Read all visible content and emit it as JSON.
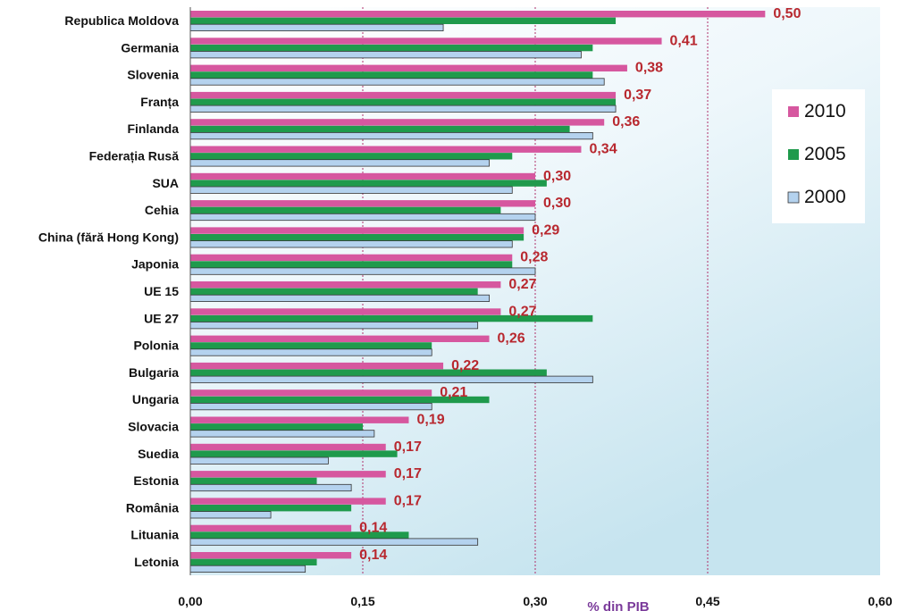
{
  "chart_data": {
    "type": "bar",
    "orientation": "horizontal",
    "categories": [
      "Republica Moldova",
      "Germania",
      "Slovenia",
      "Franța",
      "Finlanda",
      "Federația Rusă",
      "SUA",
      "Cehia",
      "China (fără Hong Kong)",
      "Japonia",
      "UE 15",
      "UE 27",
      "Polonia",
      "Bulgaria",
      "Ungaria",
      "Slovacia",
      "Suedia",
      "Estonia",
      "România",
      "Lituania",
      "Letonia"
    ],
    "series": [
      {
        "name": "2010",
        "color": "#d6579f",
        "labels": [
          "0,50",
          "0,41",
          "0,38",
          "0,37",
          "0,36",
          "0,34",
          "0,30",
          "0,30",
          "0,29",
          "0,28",
          "0,27",
          "0,27",
          "0,26",
          "0,22",
          "0,21",
          "0,19",
          "0,17",
          "0,17",
          "0,17",
          "0,14",
          "0,14"
        ],
        "values": [
          0.5,
          0.41,
          0.38,
          0.37,
          0.36,
          0.34,
          0.3,
          0.3,
          0.29,
          0.28,
          0.27,
          0.27,
          0.26,
          0.22,
          0.21,
          0.19,
          0.17,
          0.17,
          0.17,
          0.14,
          0.14
        ]
      },
      {
        "name": "2005",
        "color": "#1f9a4c",
        "values": [
          0.37,
          0.35,
          0.35,
          0.37,
          0.33,
          0.28,
          0.31,
          0.27,
          0.29,
          0.28,
          0.25,
          0.35,
          0.21,
          0.31,
          0.26,
          0.15,
          0.18,
          0.11,
          0.14,
          0.19,
          0.11
        ]
      },
      {
        "name": "2000",
        "color": "#b4d2ee",
        "values": [
          0.22,
          0.34,
          0.36,
          0.37,
          0.35,
          0.26,
          0.28,
          0.3,
          0.28,
          0.3,
          0.26,
          0.25,
          0.21,
          0.35,
          0.21,
          0.16,
          0.12,
          0.14,
          0.07,
          0.25,
          0.1
        ]
      }
    ],
    "x_ticks": [
      "0,00",
      "0,15",
      "0,30",
      "0,45",
      "0,60"
    ],
    "xlim": [
      0,
      0.6
    ],
    "reference_lines": [
      0.15,
      0.3,
      0.45
    ],
    "xlabel": "% din PIB",
    "legend_position": "right",
    "label_color": "#b8282f"
  }
}
